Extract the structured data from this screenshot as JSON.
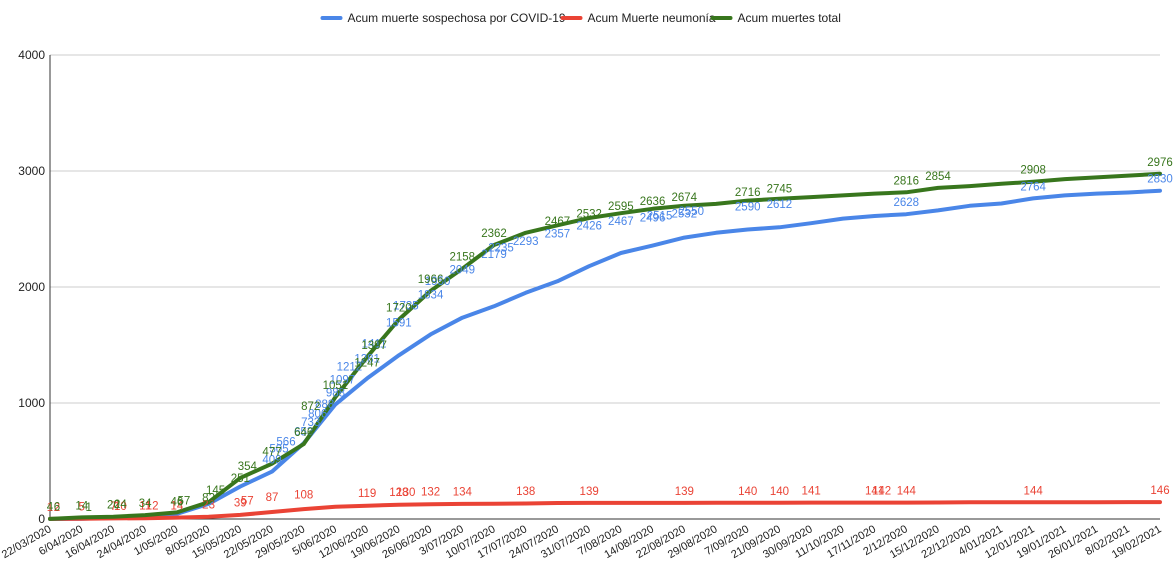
{
  "chart_data": {
    "type": "line",
    "title": "",
    "xlabel": "",
    "ylabel": "",
    "ylim": [
      0,
      4000
    ],
    "yticks": [
      0,
      1000,
      2000,
      3000,
      4000
    ],
    "grid": "horizontal",
    "legend_position": "top-center",
    "x_tick_labels": [
      "22/03/2020",
      "6/04/2020",
      "16/04/2020",
      "24/04/2020",
      "1/05/2020",
      "8/05/2020",
      "15/05/2020",
      "22/05/2020",
      "29/05/2020",
      "5/06/2020",
      "12/06/2020",
      "19/06/2020",
      "26/06/2020",
      "3/07/2020",
      "10/07/2020",
      "17/07/2020",
      "24/07/2020",
      "31/07/2020",
      "7/08/2020",
      "14/08/2020",
      "22/08/2020",
      "29/08/2020",
      "7/09/2020",
      "21/09/2020",
      "30/09/2020",
      "11/10/2020",
      "17/11/2020",
      "2/12/2020",
      "15/12/2020",
      "22/12/2020",
      "4/01/2021",
      "12/01/2021",
      "19/01/2021",
      "26/01/2021",
      "8/02/2021",
      "19/02/2021"
    ],
    "series": [
      {
        "name": "Acum muerte sospechosa por COVID-19",
        "color": "#4a86e8",
        "x": [
          "22/03/2020",
          "6/04/2020",
          "16/04/2020",
          "24/04/2020",
          "1/05/2020",
          "8/05/2020",
          "15/05/2020",
          "22/05/2020",
          "29/05/2020",
          "5/06/2020",
          "12/06/2020",
          "19/06/2020",
          "26/06/2020",
          "3/07/2020",
          "10/07/2020",
          "17/07/2020",
          "24/07/2020",
          "31/07/2020",
          "7/08/2020",
          "14/08/2020",
          "22/08/2020",
          "29/08/2020",
          "7/09/2020",
          "21/09/2020",
          "30/09/2020",
          "11/10/2020",
          "17/11/2020",
          "2/12/2020",
          "15/12/2020",
          "22/12/2020",
          "4/01/2021",
          "12/01/2021",
          "19/01/2021",
          "26/01/2021",
          "8/02/2021",
          "19/02/2021"
        ],
        "values": [
          0,
          3,
          10,
          25,
          45,
          130,
          280,
          409,
          653,
          988,
          1212,
          1411,
          1591,
          1735,
          1834,
          1950,
          2049,
          2179,
          2293,
          2357,
          2426,
          2467,
          2496,
          2515,
          2550,
          2590,
          2612,
          2628,
          2660,
          2700,
          2720,
          2764,
          2790,
          2805,
          2815,
          2830
        ],
        "data_labels": [
          {
            "x": "22/05/2020",
            "label": "409"
          },
          {
            "x": "22/05/2020",
            "label": "505"
          },
          {
            "x": "22/05/2020",
            "label": "566"
          },
          {
            "x": "29/05/2020",
            "label": "653"
          },
          {
            "x": "29/05/2020",
            "label": "733"
          },
          {
            "x": "29/05/2020",
            "label": "806"
          },
          {
            "x": "29/05/2020",
            "label": "888"
          },
          {
            "x": "5/06/2020",
            "label": "988"
          },
          {
            "x": "5/06/2020",
            "label": "1097"
          },
          {
            "x": "5/06/2020",
            "label": "1212"
          },
          {
            "x": "12/06/2020",
            "label": "1281"
          },
          {
            "x": "12/06/2020",
            "label": "1411"
          },
          {
            "x": "19/06/2020",
            "label": "1591"
          },
          {
            "x": "19/06/2020",
            "label": "1735"
          },
          {
            "x": "26/06/2020",
            "label": "1834"
          },
          {
            "x": "26/06/2020",
            "label": "1950"
          },
          {
            "x": "3/07/2020",
            "label": "2049"
          },
          {
            "x": "10/07/2020",
            "label": "2179"
          },
          {
            "x": "10/07/2020",
            "label": "2235"
          },
          {
            "x": "17/07/2020",
            "label": "2293"
          },
          {
            "x": "24/07/2020",
            "label": "2357"
          },
          {
            "x": "31/07/2020",
            "label": "2426"
          },
          {
            "x": "7/08/2020",
            "label": "2467"
          },
          {
            "x": "14/08/2020",
            "label": "2496"
          },
          {
            "x": "14/08/2020",
            "label": "2515"
          },
          {
            "x": "22/08/2020",
            "label": "2532"
          },
          {
            "x": "22/08/2020",
            "label": "2550"
          },
          {
            "x": "7/09/2020",
            "label": "2590"
          },
          {
            "x": "21/09/2020",
            "label": "2612"
          },
          {
            "x": "2/12/2020",
            "label": "2628"
          },
          {
            "x": "12/01/2021",
            "label": "2764"
          },
          {
            "x": "19/02/2021",
            "label": "2830"
          }
        ]
      },
      {
        "name": "Acum Muerte neumonía",
        "color": "#ea4335",
        "x": [
          "22/03/2020",
          "6/04/2020",
          "16/04/2020",
          "24/04/2020",
          "1/05/2020",
          "8/05/2020",
          "15/05/2020",
          "22/05/2020",
          "29/05/2020",
          "5/06/2020",
          "12/06/2020",
          "19/06/2020",
          "26/06/2020",
          "3/07/2020",
          "10/07/2020",
          "17/07/2020",
          "24/07/2020",
          "31/07/2020",
          "7/08/2020",
          "14/08/2020",
          "22/08/2020",
          "29/08/2020",
          "7/09/2020",
          "21/09/2020",
          "30/09/2020",
          "11/10/2020",
          "17/11/2020",
          "2/12/2020",
          "15/12/2020",
          "22/12/2020",
          "4/01/2021",
          "12/01/2021",
          "19/01/2021",
          "26/01/2021",
          "8/02/2021",
          "19/02/2021"
        ],
        "values": [
          1,
          2,
          5,
          7,
          12,
          20,
          35,
          60,
          85,
          105,
          115,
          122,
          128,
          130,
          132,
          134,
          138,
          139,
          139,
          139,
          139,
          140,
          140,
          140,
          141,
          141,
          141,
          141,
          142,
          144,
          144,
          144,
          145,
          145,
          146,
          146
        ],
        "data_labels": [
          {
            "x": "22/03/2020",
            "label": "1"
          },
          {
            "x": "22/03/2020",
            "label": "2"
          },
          {
            "x": "6/04/2020",
            "label": "5"
          },
          {
            "x": "16/04/2020",
            "label": "7"
          },
          {
            "x": "16/04/2020",
            "label": "10"
          },
          {
            "x": "24/04/2020",
            "label": "11"
          },
          {
            "x": "24/04/2020",
            "label": "12"
          },
          {
            "x": "1/05/2020",
            "label": "14"
          },
          {
            "x": "8/05/2020",
            "label": "23"
          },
          {
            "x": "15/05/2020",
            "label": "39"
          },
          {
            "x": "15/05/2020",
            "label": "57"
          },
          {
            "x": "22/05/2020",
            "label": "87"
          },
          {
            "x": "29/05/2020",
            "label": "108"
          },
          {
            "x": "12/06/2020",
            "label": "119"
          },
          {
            "x": "19/06/2020",
            "label": "128"
          },
          {
            "x": "19/06/2020",
            "label": "130"
          },
          {
            "x": "26/06/2020",
            "label": "132"
          },
          {
            "x": "3/07/2020",
            "label": "134"
          },
          {
            "x": "17/07/2020",
            "label": "138"
          },
          {
            "x": "31/07/2020",
            "label": "139"
          },
          {
            "x": "22/08/2020",
            "label": "139"
          },
          {
            "x": "7/09/2020",
            "label": "140"
          },
          {
            "x": "21/09/2020",
            "label": "140"
          },
          {
            "x": "30/09/2020",
            "label": "141"
          },
          {
            "x": "17/11/2020",
            "label": "141"
          },
          {
            "x": "17/11/2020",
            "label": "142"
          },
          {
            "x": "2/12/2020",
            "label": "144"
          },
          {
            "x": "12/01/2021",
            "label": "144"
          },
          {
            "x": "19/02/2021",
            "label": "146"
          }
        ]
      },
      {
        "name": "Acum muertes total",
        "color": "#38761d",
        "x": [
          "22/03/2020",
          "6/04/2020",
          "16/04/2020",
          "24/04/2020",
          "1/05/2020",
          "8/05/2020",
          "15/05/2020",
          "22/05/2020",
          "29/05/2020",
          "5/06/2020",
          "12/06/2020",
          "19/06/2020",
          "26/06/2020",
          "3/07/2020",
          "10/07/2020",
          "17/07/2020",
          "24/07/2020",
          "31/07/2020",
          "7/08/2020",
          "14/08/2020",
          "22/08/2020",
          "29/08/2020",
          "7/09/2020",
          "21/09/2020",
          "30/09/2020",
          "11/10/2020",
          "17/11/2020",
          "2/12/2020",
          "15/12/2020",
          "22/12/2020",
          "4/01/2021",
          "12/01/2021",
          "19/01/2021",
          "26/01/2021",
          "8/02/2021",
          "19/02/2021"
        ],
        "values": [
          1,
          14,
          20,
          34,
          57,
          145,
          354,
          477,
          646,
          1051,
          1397,
          1720,
          1966,
          2158,
          2362,
          2467,
          2532,
          2595,
          2636,
          2674,
          2700,
          2716,
          2745,
          2760,
          2775,
          2790,
          2805,
          2816,
          2854,
          2870,
          2890,
          2908,
          2930,
          2945,
          2960,
          2976
        ],
        "data_labels": [
          {
            "x": "22/03/2020",
            "label": "4"
          },
          {
            "x": "22/03/2020",
            "label": "6"
          },
          {
            "x": "6/04/2020",
            "label": "14"
          },
          {
            "x": "6/04/2020",
            "label": "1"
          },
          {
            "x": "16/04/2020",
            "label": "20"
          },
          {
            "x": "16/04/2020",
            "label": "24"
          },
          {
            "x": "24/04/2020",
            "label": "34"
          },
          {
            "x": "1/05/2020",
            "label": "46"
          },
          {
            "x": "1/05/2020",
            "label": "57"
          },
          {
            "x": "8/05/2020",
            "label": "82"
          },
          {
            "x": "8/05/2020",
            "label": "145"
          },
          {
            "x": "15/05/2020",
            "label": "251"
          },
          {
            "x": "15/05/2020",
            "label": "354"
          },
          {
            "x": "22/05/2020",
            "label": "477"
          },
          {
            "x": "29/05/2020",
            "label": "646"
          },
          {
            "x": "29/05/2020",
            "label": "872"
          },
          {
            "x": "5/06/2020",
            "label": "1051"
          },
          {
            "x": "12/06/2020",
            "label": "1247"
          },
          {
            "x": "12/06/2020",
            "label": "1397"
          },
          {
            "x": "19/06/2020",
            "label": "1720"
          },
          {
            "x": "26/06/2020",
            "label": "1966"
          },
          {
            "x": "3/07/2020",
            "label": "2158"
          },
          {
            "x": "10/07/2020",
            "label": "2362"
          },
          {
            "x": "24/07/2020",
            "label": "2467"
          },
          {
            "x": "31/07/2020",
            "label": "2532"
          },
          {
            "x": "7/08/2020",
            "label": "2595"
          },
          {
            "x": "14/08/2020",
            "label": "2636"
          },
          {
            "x": "22/08/2020",
            "label": "2674"
          },
          {
            "x": "7/09/2020",
            "label": "2716"
          },
          {
            "x": "21/09/2020",
            "label": "2745"
          },
          {
            "x": "2/12/2020",
            "label": "2816"
          },
          {
            "x": "15/12/2020",
            "label": "2854"
          },
          {
            "x": "12/01/2021",
            "label": "2908"
          },
          {
            "x": "19/02/2021",
            "label": "2976"
          }
        ]
      }
    ]
  }
}
